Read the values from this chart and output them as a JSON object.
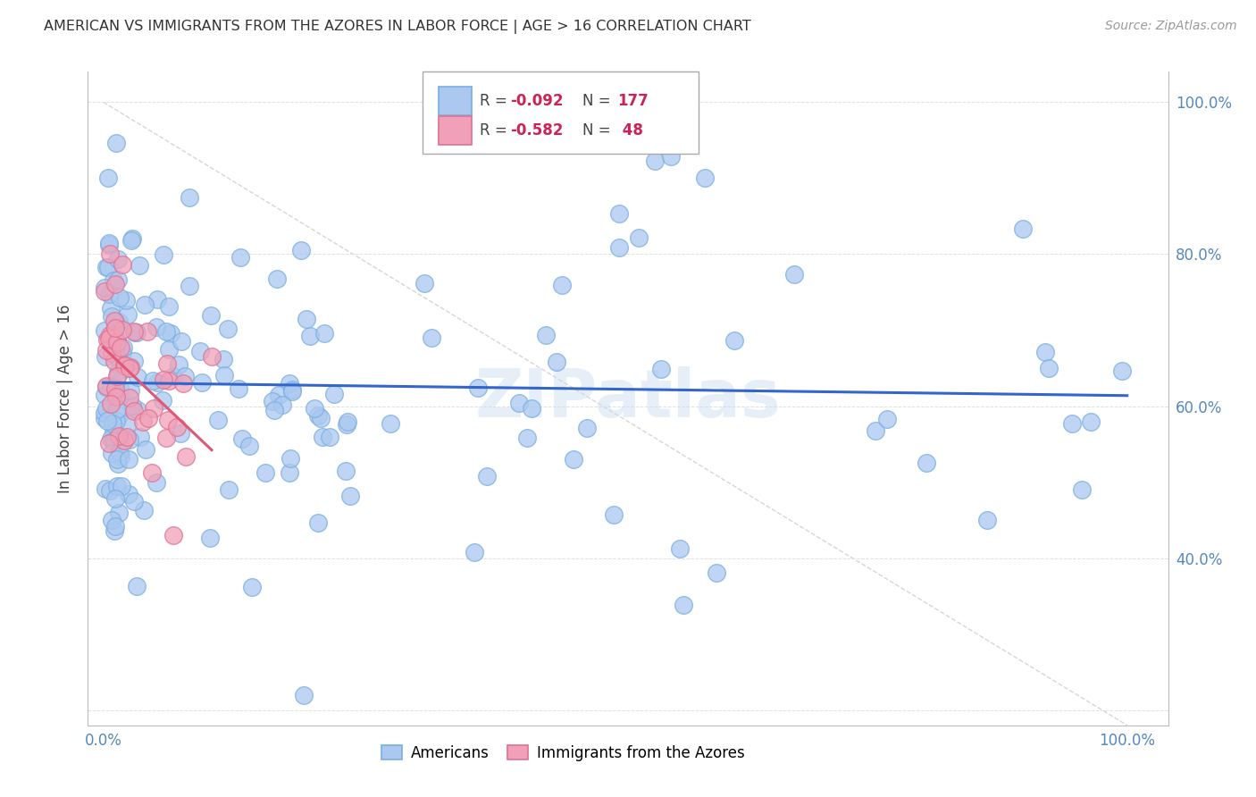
{
  "title": "AMERICAN VS IMMIGRANTS FROM THE AZORES IN LABOR FORCE | AGE > 16 CORRELATION CHART",
  "source": "Source: ZipAtlas.com",
  "ylabel": "In Labor Force | Age > 16",
  "watermark": "ZIPatlas",
  "blue_color": "#aac8f0",
  "blue_edge": "#7aaee0",
  "blue_line_color": "#3366cc",
  "pink_color": "#f0a0b8",
  "pink_edge": "#e07090",
  "pink_line_color": "#e05878",
  "ref_line_color": "#cccccc",
  "grid_color": "#e0e0e0",
  "legend_label_blue": "Americans",
  "legend_label_pink": "Immigrants from the Azores",
  "blue_R": -0.092,
  "blue_N": 177,
  "pink_R": -0.582,
  "pink_N": 48,
  "tick_color": "#5588bb",
  "ylabel_color": "#444444",
  "title_color": "#333333"
}
